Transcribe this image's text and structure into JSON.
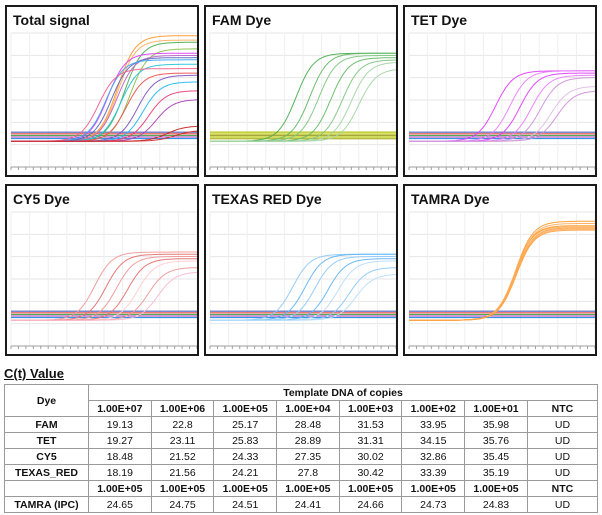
{
  "chart_data": [
    {
      "type": "line",
      "title": "Total signal",
      "xlim": [
        0,
        50
      ],
      "ylim": [
        0,
        100
      ],
      "threshold": 8,
      "series": [
        {
          "color": "#ff9a2e",
          "ct": 24.6,
          "plateau": 96
        },
        {
          "color": "#ffb060",
          "ct": 24.8,
          "plateau": 92
        },
        {
          "color": "#4caf50",
          "ct": 26.5,
          "plateau": 90
        },
        {
          "color": "#8bc34a",
          "ct": 28.0,
          "plateau": 84
        },
        {
          "color": "#e040fb",
          "ct": 22.0,
          "plateau": 80
        },
        {
          "color": "#ba68c8",
          "ct": 24.5,
          "plateau": 78
        },
        {
          "color": "#5c6bc0",
          "ct": 23.0,
          "plateau": 76
        },
        {
          "color": "#42a5f5",
          "ct": 21.5,
          "plateau": 74
        },
        {
          "color": "#26c6da",
          "ct": 25.5,
          "plateau": 70
        },
        {
          "color": "#f06292",
          "ct": 19.5,
          "plateau": 66
        },
        {
          "color": "#ef5350",
          "ct": 27.0,
          "plateau": 62
        },
        {
          "color": "#7e57c2",
          "ct": 30.0,
          "plateau": 60
        },
        {
          "color": "#29b6f6",
          "ct": 31.5,
          "plateau": 54
        },
        {
          "color": "#ec407a",
          "ct": 33.0,
          "plateau": 46
        },
        {
          "color": "#ab47bc",
          "ct": 35.0,
          "plateau": 38
        },
        {
          "color": "#c62828",
          "ct": 38.0,
          "plateau": 14
        },
        {
          "color": "#d32f2f",
          "ct": 40.0,
          "plateau": 10
        }
      ]
    },
    {
      "type": "line",
      "title": "FAM Dye",
      "xlim": [
        0,
        50
      ],
      "ylim": [
        0,
        100
      ],
      "threshold": 8,
      "series": [
        {
          "color": "#4caf50",
          "ct": 19.13,
          "plateau": 80
        },
        {
          "color": "#66bb6a",
          "ct": 22.8,
          "plateau": 80
        },
        {
          "color": "#81c784",
          "ct": 25.17,
          "plateau": 78
        },
        {
          "color": "#66bb6a",
          "ct": 28.48,
          "plateau": 76
        },
        {
          "color": "#81c784",
          "ct": 31.53,
          "plateau": 74
        },
        {
          "color": "#a5d6a7",
          "ct": 33.95,
          "plateau": 72
        },
        {
          "color": "#a5d6a7",
          "ct": 35.98,
          "plateau": 66
        }
      ]
    },
    {
      "type": "line",
      "title": "TET Dye",
      "xlim": [
        0,
        50
      ],
      "ylim": [
        0,
        100
      ],
      "threshold": 8,
      "series": [
        {
          "color": "#e040fb",
          "ct": 19.27,
          "plateau": 64
        },
        {
          "color": "#ea80fc",
          "ct": 23.11,
          "plateau": 64
        },
        {
          "color": "#e040fb",
          "ct": 25.83,
          "plateau": 62
        },
        {
          "color": "#ea80fc",
          "ct": 28.89,
          "plateau": 60
        },
        {
          "color": "#ce93d8",
          "ct": 31.31,
          "plateau": 58
        },
        {
          "color": "#e1bee7",
          "ct": 34.15,
          "plateau": 50
        },
        {
          "color": "#ce93d8",
          "ct": 35.76,
          "plateau": 46
        }
      ]
    },
    {
      "type": "line",
      "title": "CY5 Dye",
      "xlim": [
        0,
        50
      ],
      "ylim": [
        0,
        100
      ],
      "threshold": 8,
      "series": [
        {
          "color": "#ef9a9a",
          "ct": 18.48,
          "plateau": 62
        },
        {
          "color": "#e57373",
          "ct": 21.52,
          "plateau": 60
        },
        {
          "color": "#ef9a9a",
          "ct": 24.33,
          "plateau": 58
        },
        {
          "color": "#e57373",
          "ct": 27.35,
          "plateau": 56
        },
        {
          "color": "#ffcdd2",
          "ct": 30.02,
          "plateau": 54
        },
        {
          "color": "#ef9a9a",
          "ct": 32.86,
          "plateau": 48
        },
        {
          "color": "#f8bbd0",
          "ct": 35.45,
          "plateau": 44
        }
      ]
    },
    {
      "type": "line",
      "title": "TEXAS RED Dye",
      "xlim": [
        0,
        50
      ],
      "ylim": [
        0,
        100
      ],
      "threshold": 8,
      "series": [
        {
          "color": "#90caf9",
          "ct": 18.19,
          "plateau": 60
        },
        {
          "color": "#64b5f6",
          "ct": 21.56,
          "plateau": 60
        },
        {
          "color": "#90caf9",
          "ct": 24.21,
          "plateau": 58
        },
        {
          "color": "#64b5f6",
          "ct": 27.8,
          "plateau": 56
        },
        {
          "color": "#bbdefb",
          "ct": 30.42,
          "plateau": 54
        },
        {
          "color": "#90caf9",
          "ct": 33.39,
          "plateau": 48
        },
        {
          "color": "#bbdefb",
          "ct": 35.19,
          "plateau": 42
        }
      ]
    },
    {
      "type": "line",
      "title": "TAMRA Dye",
      "xlim": [
        0,
        50
      ],
      "ylim": [
        0,
        100
      ],
      "threshold": 8,
      "series": [
        {
          "color": "#ff9a2e",
          "ct": 24.65,
          "plateau": 90
        },
        {
          "color": "#ffb060",
          "ct": 24.75,
          "plateau": 88
        },
        {
          "color": "#ff9a2e",
          "ct": 24.51,
          "plateau": 86
        },
        {
          "color": "#ffb060",
          "ct": 24.41,
          "plateau": 85
        },
        {
          "color": "#ffa040",
          "ct": 24.66,
          "plateau": 84
        },
        {
          "color": "#ffb060",
          "ct": 24.73,
          "plateau": 83
        },
        {
          "color": "#ffa040",
          "ct": 24.83,
          "plateau": 82
        }
      ]
    }
  ],
  "ct_section": {
    "heading": "C(t) Value",
    "dye_header": "Dye",
    "group_header": "Template DNA of copies",
    "columns": [
      "1.00E+07",
      "1.00E+06",
      "1.00E+05",
      "1.00E+04",
      "1.00E+03",
      "1.00E+02",
      "1.00E+01",
      "NTC"
    ],
    "rows": [
      {
        "dye": "FAM",
        "values": [
          "19.13",
          "22.8",
          "25.17",
          "28.48",
          "31.53",
          "33.95",
          "35.98",
          "UD"
        ]
      },
      {
        "dye": "TET",
        "values": [
          "19.27",
          "23.11",
          "25.83",
          "28.89",
          "31.31",
          "34.15",
          "35.76",
          "UD"
        ]
      },
      {
        "dye": "CY5",
        "values": [
          "18.48",
          "21.52",
          "24.33",
          "27.35",
          "30.02",
          "32.86",
          "35.45",
          "UD"
        ]
      },
      {
        "dye": "TEXAS_RED",
        "values": [
          "18.19",
          "21.56",
          "24.21",
          "27.8",
          "30.42",
          "33.39",
          "35.19",
          "UD"
        ]
      }
    ],
    "ipc_columns": [
      "1.00E+05",
      "1.00E+05",
      "1.00E+05",
      "1.00E+05",
      "1.00E+05",
      "1.00E+05",
      "1.00E+05",
      "NTC"
    ],
    "ipc_row": {
      "dye": "TAMRA (IPC)",
      "values": [
        "24.65",
        "24.75",
        "24.51",
        "24.41",
        "24.66",
        "24.73",
        "24.83",
        "UD"
      ]
    }
  }
}
